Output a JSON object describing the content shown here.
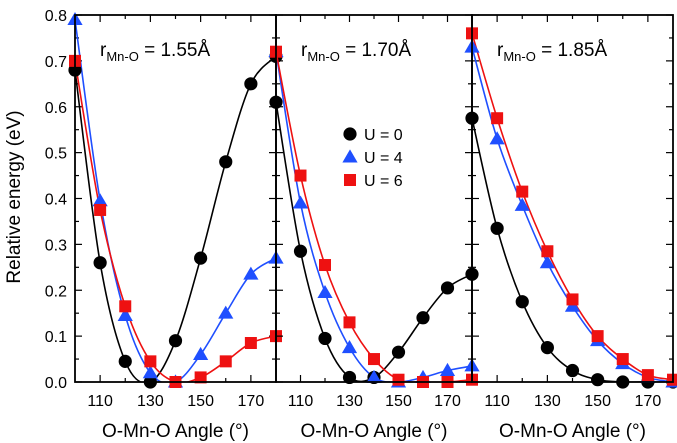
{
  "figure": {
    "ylabel": "Relative energy (eV)",
    "legend": {
      "placement": "top-left of middle panel",
      "entries": [
        {
          "label": "U = 0",
          "color": "#000000",
          "marker": "circle"
        },
        {
          "label": "U = 4",
          "color": "#1f4fff",
          "marker": "triangle"
        },
        {
          "label": "U = 6",
          "color": "#ee1111",
          "marker": "square"
        }
      ]
    }
  },
  "chart_data": [
    {
      "type": "line",
      "panel_label": {
        "main": "r",
        "sub": "Mn-O",
        "rest": " = 1.55Å"
      },
      "xlabel": "O-Mn-O Angle (°)",
      "xlim": [
        100,
        180
      ],
      "ylim": [
        0,
        0.8
      ],
      "xticks": [
        "110",
        "130",
        "150",
        "170"
      ],
      "yticks": [
        "0.0",
        "0.1",
        "0.2",
        "0.3",
        "0.4",
        "0.5",
        "0.6",
        "0.7",
        "0.8"
      ],
      "grid": false,
      "series": [
        {
          "name": "U = 0",
          "color": "#000000",
          "marker": "circle",
          "x": [
            100,
            110,
            120,
            130,
            140,
            150,
            160,
            170,
            180
          ],
          "y": [
            0.68,
            0.26,
            0.045,
            0.0,
            0.09,
            0.27,
            0.48,
            0.65,
            0.71
          ]
        },
        {
          "name": "U = 4",
          "color": "#1f4fff",
          "marker": "triangle",
          "x": [
            100,
            110,
            120,
            130,
            140,
            150,
            160,
            170,
            180
          ],
          "y": [
            0.79,
            0.395,
            0.145,
            0.02,
            0.0,
            0.06,
            0.15,
            0.235,
            0.27
          ]
        },
        {
          "name": "U = 6",
          "color": "#ee1111",
          "marker": "square",
          "x": [
            100,
            110,
            120,
            130,
            140,
            150,
            160,
            170,
            180
          ],
          "y": [
            0.7,
            0.375,
            0.165,
            0.045,
            0.0,
            0.01,
            0.045,
            0.085,
            0.1
          ]
        }
      ]
    },
    {
      "type": "line",
      "panel_label": {
        "main": "r",
        "sub": "Mn-O",
        "rest": " = 1.70Å"
      },
      "xlabel": "O-Mn-O Angle (°)",
      "xlim": [
        100,
        180
      ],
      "ylim": [
        0,
        0.8
      ],
      "xticks": [
        "110",
        "130",
        "150",
        "170"
      ],
      "grid": false,
      "series": [
        {
          "name": "U = 0",
          "color": "#000000",
          "marker": "circle",
          "x": [
            100,
            110,
            120,
            130,
            140,
            150,
            160,
            170,
            180
          ],
          "y": [
            0.61,
            0.285,
            0.095,
            0.01,
            0.01,
            0.065,
            0.14,
            0.205,
            0.235
          ]
        },
        {
          "name": "U = 4",
          "color": "#1f4fff",
          "marker": "triangle",
          "x": [
            100,
            110,
            120,
            130,
            140,
            150,
            160,
            170,
            180
          ],
          "y": [
            0.72,
            0.39,
            0.195,
            0.075,
            0.01,
            0.0,
            0.01,
            0.025,
            0.035
          ]
        },
        {
          "name": "U = 6",
          "color": "#ee1111",
          "marker": "square",
          "x": [
            100,
            110,
            120,
            130,
            140,
            150,
            160,
            170,
            180
          ],
          "y": [
            0.72,
            0.45,
            0.255,
            0.13,
            0.05,
            0.005,
            0.0,
            0.0,
            0.005
          ]
        }
      ]
    },
    {
      "type": "line",
      "panel_label": {
        "main": "r",
        "sub": "Mn-O",
        "rest": " = 1.85Å"
      },
      "xlabel": "O-Mn-O Angle (°)",
      "xlim": [
        100,
        180
      ],
      "ylim": [
        0,
        0.8
      ],
      "xticks": [
        "110",
        "130",
        "150",
        "170"
      ],
      "grid": false,
      "series": [
        {
          "name": "U = 0",
          "color": "#000000",
          "marker": "circle",
          "x": [
            100,
            110,
            120,
            130,
            140,
            150,
            160,
            170,
            180
          ],
          "y": [
            0.575,
            0.335,
            0.175,
            0.075,
            0.025,
            0.005,
            0.0,
            0.0,
            0.0
          ]
        },
        {
          "name": "U = 4",
          "color": "#1f4fff",
          "marker": "triangle",
          "x": [
            100,
            110,
            120,
            130,
            140,
            150,
            160,
            170,
            180
          ],
          "y": [
            0.73,
            0.53,
            0.385,
            0.26,
            0.165,
            0.09,
            0.04,
            0.01,
            0.0
          ]
        },
        {
          "name": "U = 6",
          "color": "#ee1111",
          "marker": "square",
          "x": [
            100,
            110,
            120,
            130,
            140,
            150,
            160,
            170,
            180
          ],
          "y": [
            0.76,
            0.575,
            0.415,
            0.285,
            0.18,
            0.1,
            0.05,
            0.015,
            0.005
          ]
        }
      ]
    }
  ]
}
